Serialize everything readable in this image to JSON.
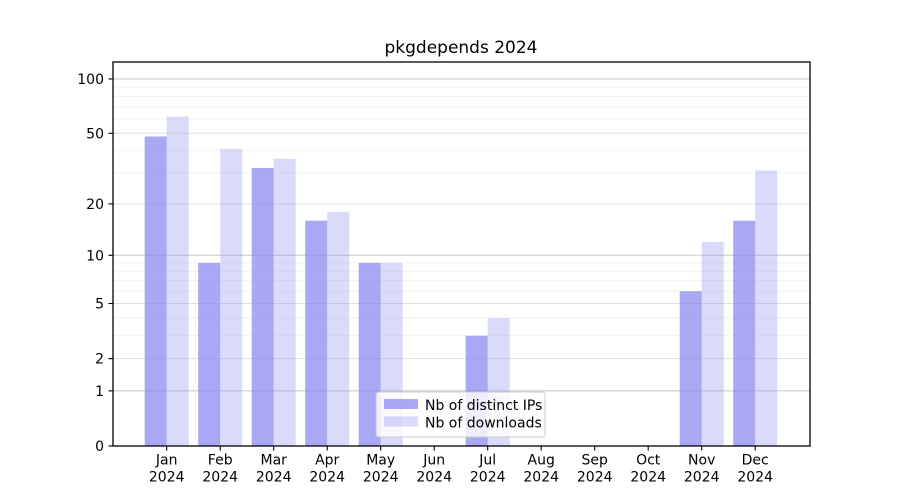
{
  "chart_data": {
    "type": "bar",
    "title": "pkgdepends 2024",
    "categories": [
      "Jan",
      "Feb",
      "Mar",
      "Apr",
      "May",
      "Jun",
      "Jul",
      "Aug",
      "Sep",
      "Oct",
      "Nov",
      "Dec"
    ],
    "category_year_label": "2024",
    "series": [
      {
        "name": "Nb of distinct IPs",
        "color": "rgba(134,134,240,0.72)",
        "values": [
          48,
          9,
          32,
          16,
          9,
          0,
          3,
          0,
          0,
          0,
          6,
          16
        ]
      },
      {
        "name": "Nb of downloads",
        "color": "rgba(134,134,240,0.31)",
        "values": [
          62,
          41,
          36,
          18,
          9,
          0,
          4,
          0,
          0,
          0,
          12,
          31
        ]
      }
    ],
    "yscale": "log1p",
    "ylim": [
      0,
      124
    ],
    "yticks": [
      100,
      50,
      20,
      10,
      5,
      2,
      1,
      0
    ],
    "minor_yticks": [
      90,
      80,
      70,
      60,
      40,
      30,
      9,
      8,
      7,
      6,
      4,
      3
    ],
    "grid": true,
    "legend_position": "lower center",
    "xlabel": "",
    "ylabel": ""
  },
  "colors": {
    "background": "#ffffff",
    "axis": "#000000",
    "text": "#000000",
    "grid_decade": "#c8c8c8",
    "grid_mid": "#e0e0e0",
    "grid_minor": "#f2f2f2",
    "legend_border": "#cccccc"
  }
}
